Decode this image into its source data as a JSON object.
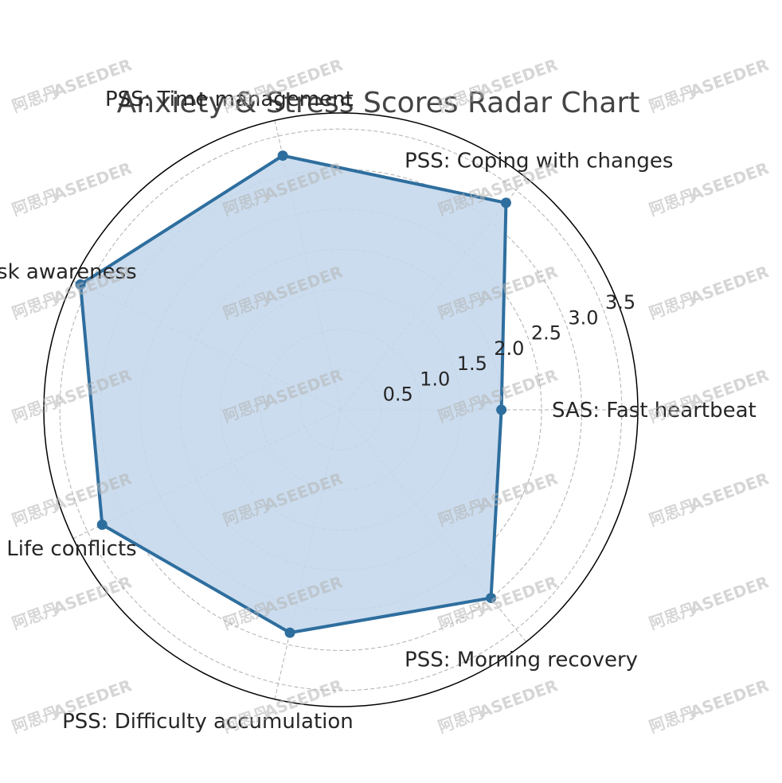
{
  "chart_data": {
    "type": "radar",
    "title": "Anxiety & Stress Scores Radar Chart",
    "categories": [
      "SAS: Fast heartbeat",
      "PSS: Coping with changes",
      "PSS: Time management",
      "PSS: Task awareness",
      "PSS: Life conflicts",
      "PSS: Difficulty accumulation",
      "PSS: Morning recovery"
    ],
    "series": [
      {
        "values": [
          2.0,
          3.3,
          3.25,
          3.6,
          3.3,
          2.85,
          3.0
        ]
      }
    ],
    "radial_ticks": [
      0.5,
      1.0,
      1.5,
      2.0,
      2.5,
      3.0,
      3.5
    ],
    "rlim": [
      0,
      3.7
    ],
    "grid": true,
    "colors": {
      "line": "#2e6e9e",
      "fill": "#c5d8ec",
      "grid": "#b0b0b0",
      "frame": "#000000"
    }
  },
  "watermark": {
    "text": "ASEEDER",
    "subtext": "阿思丹"
  }
}
